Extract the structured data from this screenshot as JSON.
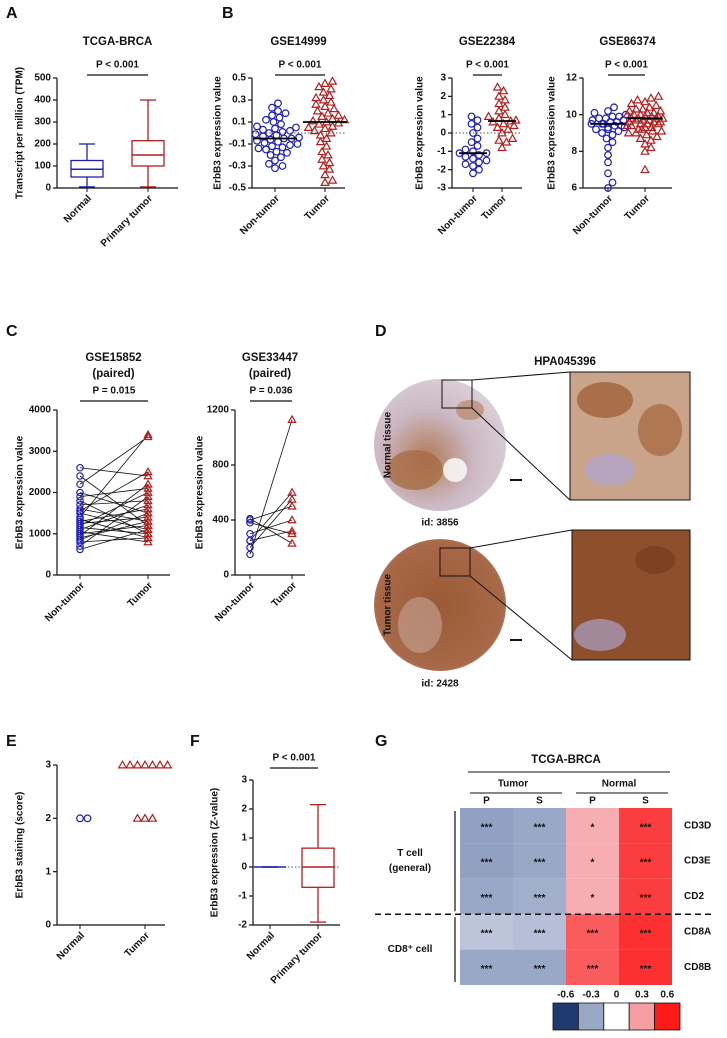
{
  "panel_labels": [
    "A",
    "B",
    "C",
    "D",
    "E",
    "F",
    "G"
  ],
  "chart_data": [
    {
      "type": "box",
      "title": "TCGA-BRCA",
      "annotation": "P < 0.001",
      "ylabel": "Transcript per million (TPM)",
      "categories": [
        "Normal",
        "Primary tumor"
      ],
      "colors": [
        "#1f1fb4",
        "#b21f1f"
      ],
      "boxes": [
        {
          "min": 5,
          "q1": 50,
          "median": 85,
          "q3": 125,
          "max": 200
        },
        {
          "min": 5,
          "q1": 100,
          "median": 150,
          "q3": 215,
          "max": 400
        }
      ],
      "ylim": [
        0,
        500
      ],
      "yticks": [
        0,
        100,
        200,
        300,
        400,
        500
      ]
    },
    {
      "type": "dot",
      "title": "GSE14999",
      "annotation": "P < 0.001",
      "ylabel": "ErbB3 expression value",
      "categories": [
        "Non-tumor",
        "Tumor"
      ],
      "colors": [
        "#1f1fb4",
        "#b21f1f"
      ],
      "markers": [
        "circle",
        "triangle"
      ],
      "values": [
        [
          -0.32,
          -0.3,
          -0.28,
          -0.25,
          -0.22,
          -0.2,
          -0.18,
          -0.17,
          -0.15,
          -0.14,
          -0.13,
          -0.12,
          -0.11,
          -0.1,
          -0.09,
          -0.08,
          -0.07,
          -0.06,
          -0.05,
          -0.05,
          -0.04,
          -0.03,
          -0.02,
          -0.01,
          0,
          0.01,
          0.02,
          0.03,
          0.04,
          0.05,
          0.06,
          0.08,
          0.1,
          0.12,
          0.14,
          0.16,
          0.18,
          0.2,
          0.23,
          0.27
        ],
        [
          -0.45,
          -0.43,
          -0.38,
          -0.33,
          -0.3,
          -0.27,
          -0.24,
          -0.2,
          -0.17,
          -0.12,
          -0.08,
          -0.05,
          -0.02,
          0,
          0.02,
          0.04,
          0.06,
          0.08,
          0.09,
          0.1,
          0.11,
          0.12,
          0.13,
          0.15,
          0.16,
          0.18,
          0.2,
          0.22,
          0.24,
          0.26,
          0.28,
          0.3,
          0.32,
          0.34,
          0.37,
          0.4,
          0.42,
          0.45,
          0.47,
          0.05
        ]
      ],
      "medians": [
        -0.05,
        0.1
      ],
      "refline": 0,
      "ylim": [
        -0.5,
        0.5
      ],
      "yticks": [
        -0.5,
        -0.3,
        -0.1,
        0.1,
        0.3,
        0.5
      ]
    },
    {
      "type": "dot",
      "title": "GSE22384",
      "annotation": "P < 0.001",
      "ylabel": "ErbB3 expression value",
      "categories": [
        "Non-tumor",
        "Tumor"
      ],
      "colors": [
        "#1f1fb4",
        "#b21f1f"
      ],
      "markers": [
        "circle",
        "triangle"
      ],
      "values": [
        [
          -2.2,
          -2.0,
          -1.8,
          -1.7,
          -1.6,
          -1.5,
          -1.4,
          -1.3,
          -1.2,
          -1.1,
          -1.1,
          -1.0,
          -0.9,
          -0.7,
          -0.5,
          -0.3,
          0,
          0.3,
          0.5,
          0.7,
          0.9
        ],
        [
          -0.8,
          -0.5,
          -0.4,
          -0.3,
          0,
          0.2,
          0.3,
          0.4,
          0.5,
          0.6,
          0.65,
          0.7,
          0.8,
          0.9,
          1.0,
          1.2,
          1.4,
          1.6,
          1.8,
          2.0,
          2.3,
          2.5
        ]
      ],
      "medians": [
        -1.1,
        0.65
      ],
      "refline": 0,
      "ylim": [
        -3,
        3
      ],
      "yticks": [
        -3,
        -2,
        -1,
        0,
        1,
        2,
        3
      ]
    },
    {
      "type": "dot",
      "title": "GSE86374",
      "annotation": "P < 0.001",
      "ylabel": "ErbB3 expression value",
      "categories": [
        "Non-tumor",
        "Tumor"
      ],
      "colors": [
        "#1f1fb4",
        "#b21f1f"
      ],
      "markers": [
        "circle",
        "triangle"
      ],
      "values": [
        [
          6.0,
          6.3,
          6.8,
          7.4,
          7.8,
          8.2,
          8.5,
          8.7,
          8.9,
          9.0,
          9.1,
          9.2,
          9.2,
          9.3,
          9.3,
          9.4,
          9.4,
          9.5,
          9.5,
          9.5,
          9.6,
          9.6,
          9.7,
          9.7,
          9.8,
          9.8,
          9.9,
          9.9,
          10.0,
          10.1,
          10.2,
          10.4
        ],
        [
          7.0,
          8.0,
          8.2,
          8.4,
          8.6,
          8.7,
          8.8,
          8.9,
          9.0,
          9.0,
          9.1,
          9.1,
          9.2,
          9.2,
          9.3,
          9.3,
          9.4,
          9.4,
          9.5,
          9.5,
          9.5,
          9.6,
          9.6,
          9.6,
          9.7,
          9.7,
          9.7,
          9.8,
          9.8,
          9.8,
          9.8,
          9.9,
          9.9,
          9.9,
          10.0,
          10.0,
          10.0,
          10.1,
          10.1,
          10.2,
          10.2,
          10.3,
          10.3,
          10.4,
          10.5,
          10.6,
          10.7,
          10.8,
          10.9,
          11.0
        ]
      ],
      "medians": [
        9.5,
        9.8
      ],
      "ylim": [
        6,
        12
      ],
      "yticks": [
        6,
        8,
        10,
        12
      ]
    },
    {
      "type": "paired",
      "title": "GSE15852",
      "subtitle": "(paired)",
      "annotation": "P = 0.015",
      "ylabel": "ErbB3 expression value",
      "categories": [
        "Non-tumor",
        "Tumor"
      ],
      "colors": [
        "#1f1fb4",
        "#b21f1f"
      ],
      "markers": [
        "circle",
        "triangle"
      ],
      "pairs": [
        [
          620,
          1100
        ],
        [
          700,
          1900
        ],
        [
          800,
          900
        ],
        [
          850,
          1500
        ],
        [
          900,
          1300
        ],
        [
          950,
          2200
        ],
        [
          1000,
          1200
        ],
        [
          1050,
          800
        ],
        [
          1100,
          1700
        ],
        [
          1150,
          1000
        ],
        [
          1200,
          2000
        ],
        [
          1250,
          1400
        ],
        [
          1300,
          1600
        ],
        [
          1350,
          900
        ],
        [
          1400,
          3400
        ],
        [
          1500,
          1100
        ],
        [
          1550,
          2500
        ],
        [
          1600,
          1300
        ],
        [
          1700,
          1800
        ],
        [
          1800,
          1000
        ],
        [
          1900,
          2100
        ],
        [
          2000,
          1500
        ],
        [
          2200,
          3350
        ],
        [
          2400,
          1200
        ],
        [
          2600,
          2400
        ]
      ],
      "ylim": [
        0,
        4000
      ],
      "yticks": [
        0,
        1000,
        2000,
        3000,
        4000
      ]
    },
    {
      "type": "paired",
      "title": "GSE33447",
      "subtitle": "(paired)",
      "annotation": "P = 0.036",
      "ylabel": "ErbB3 expression value",
      "categories": [
        "Non-tumor",
        "Tumor"
      ],
      "colors": [
        "#1f1fb4",
        "#b21f1f"
      ],
      "markers": [
        "circle",
        "triangle"
      ],
      "pairs": [
        [
          150,
          1130
        ],
        [
          200,
          550
        ],
        [
          250,
          600
        ],
        [
          300,
          400
        ],
        [
          380,
          300
        ],
        [
          400,
          500
        ],
        [
          410,
          230
        ],
        [
          250,
          320
        ]
      ],
      "ylim": [
        0,
        1200
      ],
      "yticks": [
        0,
        400,
        800,
        1200
      ]
    },
    {
      "type": "dot",
      "ylabel": "ErbB3 staining (score)",
      "categories": [
        "Normal",
        "Tumor"
      ],
      "colors": [
        "#1f1fb4",
        "#b21f1f"
      ],
      "markers": [
        "circle",
        "triangle"
      ],
      "values": [
        [
          2,
          2
        ],
        [
          3,
          3,
          3,
          3,
          3,
          3,
          3,
          2,
          2,
          2
        ]
      ],
      "ylim": [
        0,
        3
      ],
      "yticks": [
        0,
        1,
        2,
        3
      ]
    },
    {
      "type": "box",
      "annotation": "P < 0.001",
      "ylabel": "ErbB3 expression (Z-value)",
      "categories": [
        "Normal",
        "Primary tumor"
      ],
      "colors": [
        "#1f1fb4",
        "#b21f1f"
      ],
      "boxes": [
        {
          "min": 0,
          "q1": 0,
          "median": 0,
          "q3": 0,
          "max": 0
        },
        {
          "min": -1.9,
          "q1": -0.7,
          "median": 0,
          "q3": 0.65,
          "max": 2.15
        }
      ],
      "refline": 0,
      "ylim": [
        -2,
        3
      ],
      "yticks": [
        -2,
        -1,
        0,
        1,
        2,
        3
      ]
    },
    {
      "type": "heatmap",
      "title": "TCGA-BRCA",
      "column_groups": [
        {
          "name": "Tumor",
          "columns": [
            "P",
            "S"
          ]
        },
        {
          "name": "Normal",
          "columns": [
            "P",
            "S"
          ]
        }
      ],
      "row_groups": [
        {
          "label": [
            "T cell",
            "(general)"
          ],
          "rows": [
            "CD3D",
            "CD3E",
            "CD2"
          ],
          "values": [
            [
              -0.32,
              -0.3,
              0.25,
              0.52
            ],
            [
              -0.32,
              -0.3,
              0.25,
              0.52
            ],
            [
              -0.3,
              -0.28,
              0.25,
              0.52
            ]
          ],
          "annotations": [
            [
              "***",
              "***",
              "*",
              "***"
            ],
            [
              "***",
              "***",
              "*",
              "***"
            ],
            [
              "***",
              "***",
              "*",
              "***"
            ]
          ]
        },
        {
          "label": [
            "CD8⁺ cell"
          ],
          "rows": [
            "CD8A",
            "CD8B"
          ],
          "values": [
            [
              -0.2,
              -0.22,
              0.45,
              0.55
            ],
            [
              -0.3,
              -0.3,
              0.45,
              0.55
            ]
          ],
          "annotations": [
            [
              "***",
              "***",
              "***",
              "***"
            ],
            [
              "***",
              "***",
              "***",
              "***"
            ]
          ]
        }
      ],
      "colorbar_ticks": [
        -0.6,
        -0.3,
        0,
        0.3,
        0.6
      ],
      "colorscale": [
        "#1f3a6e",
        "#9aa8c8",
        "#ffffff",
        "#f59ea3",
        "#ff1a1a"
      ]
    }
  ],
  "image_panel": {
    "title": "HPA045396",
    "rows": [
      {
        "label": "Normal tissue",
        "id": "id: 3856"
      },
      {
        "label": "Tumor tissue",
        "id": "id: 2428"
      }
    ]
  }
}
